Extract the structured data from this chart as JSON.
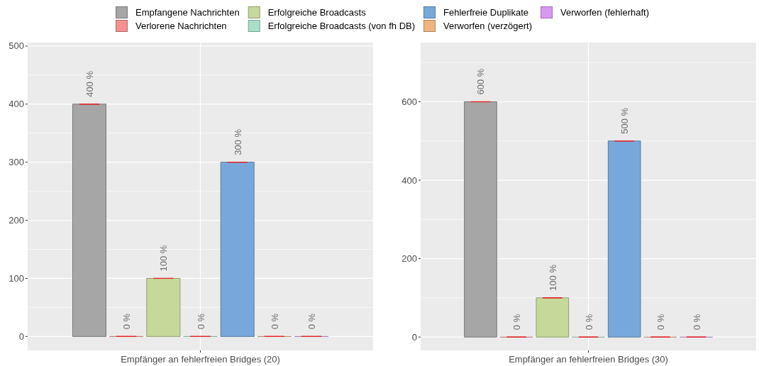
{
  "chart_data": [
    {
      "type": "bar",
      "categories": [
        "Empfänger an fehlerfreien Bridges (20)"
      ],
      "ylim": [
        -24,
        506
      ],
      "yticks": [
        0,
        100,
        200,
        300,
        400,
        500
      ],
      "grid": true,
      "legend": "top",
      "series": [
        {
          "name": "Empfangene Nachrichten",
          "color": "#a6a6a6",
          "values": [
            400
          ],
          "errors": [
            0
          ],
          "value_labels": [
            "400 %"
          ]
        },
        {
          "name": "Verlorene Nachrichten",
          "color": "#f59090",
          "values": [
            0
          ],
          "errors": [
            0
          ],
          "value_labels": [
            "0 %"
          ]
        },
        {
          "name": "Erfolgreiche Broadcasts",
          "color": "#c6d99b",
          "values": [
            100
          ],
          "errors": [
            0
          ],
          "value_labels": [
            "100 %"
          ]
        },
        {
          "name": "Erfolgreiche Broadcasts (von fh DB)",
          "color": "#a9dfc9",
          "values": [
            0
          ],
          "errors": [
            0
          ],
          "value_labels": [
            "0 %"
          ]
        },
        {
          "name": "Fehlerfreie Duplikate",
          "color": "#78a8db",
          "values": [
            300
          ],
          "errors": [
            0
          ],
          "value_labels": [
            "300 %"
          ]
        },
        {
          "name": "Verworfen (verzögert)",
          "color": "#f0b47e",
          "values": [
            0
          ],
          "errors": [
            0
          ],
          "value_labels": [
            "0 %"
          ]
        },
        {
          "name": "Verworfen (fehlerhaft)",
          "color": "#d898f2",
          "values": [
            0
          ],
          "errors": [
            0
          ],
          "value_labels": [
            "0 %"
          ]
        }
      ]
    },
    {
      "type": "bar",
      "categories": [
        "Empfänger an fehlerfreien Bridges (30)"
      ],
      "ylim": [
        -34,
        751
      ],
      "yticks": [
        0,
        200,
        400,
        600
      ],
      "grid": true,
      "series": [
        {
          "color": "#a6a6a6",
          "values": [
            600
          ],
          "errors": [
            0
          ],
          "value_labels": [
            "600 %"
          ]
        },
        {
          "color": "#f59090",
          "values": [
            0
          ],
          "errors": [
            0
          ],
          "value_labels": [
            "0 %"
          ]
        },
        {
          "color": "#c6d99b",
          "values": [
            100
          ],
          "errors": [
            0
          ],
          "value_labels": [
            "100 %"
          ]
        },
        {
          "color": "#a9dfc9",
          "values": [
            0
          ],
          "errors": [
            0
          ],
          "value_labels": [
            "0 %"
          ]
        },
        {
          "color": "#78a8db",
          "values": [
            500
          ],
          "errors": [
            0
          ],
          "value_labels": [
            "500 %"
          ]
        },
        {
          "color": "#f0b47e",
          "values": [
            0
          ],
          "errors": [
            0
          ],
          "value_labels": [
            "0 %"
          ]
        },
        {
          "color": "#d898f2",
          "values": [
            0
          ],
          "errors": [
            0
          ],
          "value_labels": [
            "0 %"
          ]
        }
      ]
    }
  ]
}
